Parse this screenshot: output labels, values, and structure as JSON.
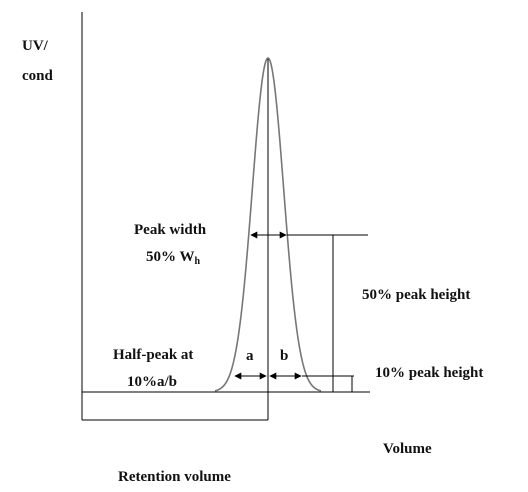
{
  "axis": {
    "y_label_line1": "UV/",
    "y_label_line2": "cond",
    "x_label": "Volume"
  },
  "labels": {
    "peak_width_line1": "Peak width",
    "peak_width_line2": "50% W",
    "peak_width_subscript": "h",
    "half_peak_line1": "Half-peak at",
    "half_peak_line2": "10%a/b",
    "a": "a",
    "b": "b",
    "fifty_peak_height": "50% peak height",
    "ten_peak_height": "10% peak height",
    "retention_volume": "Retention volume"
  }
}
